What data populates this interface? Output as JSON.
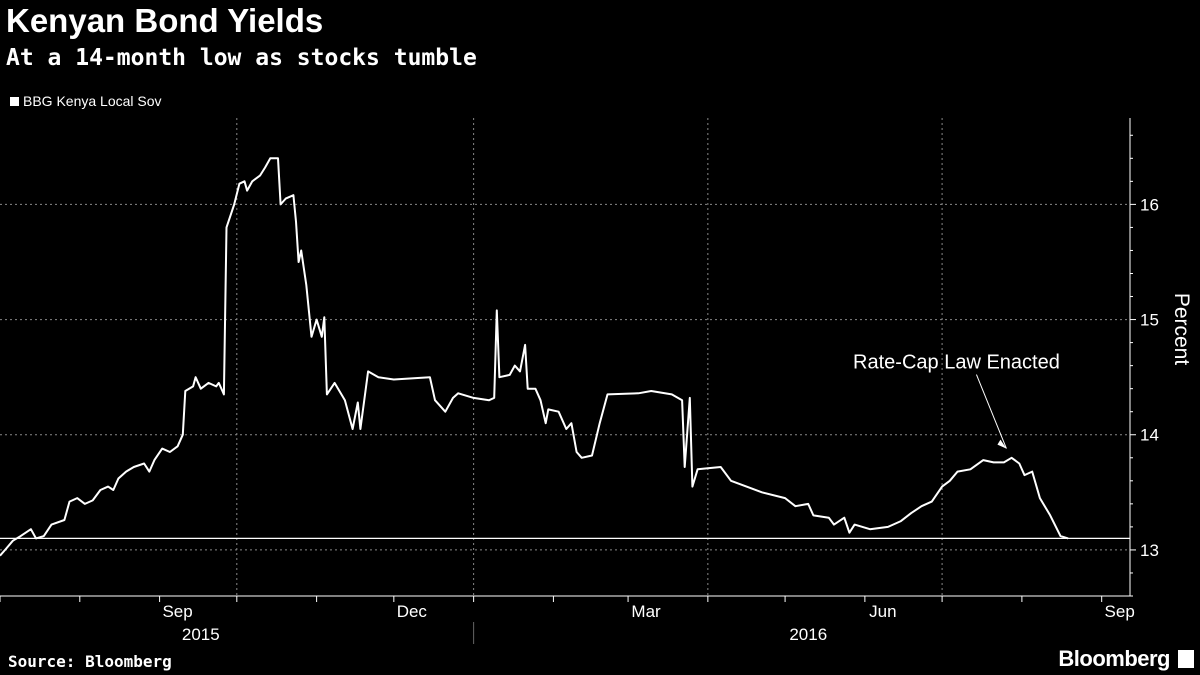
{
  "chart_data": {
    "type": "line",
    "title": "Kenyan Bond Yields",
    "subtitle": "At a 14-month low as stocks tumble",
    "ylabel": "Percent",
    "ylim": [
      12.6,
      16.75
    ],
    "yticks": [
      13,
      14,
      15,
      16
    ],
    "xlim": [
      "2015-07-01",
      "2016-09-12"
    ],
    "month_ticks": [
      {
        "date": "2015-07-01",
        "label": ""
      },
      {
        "date": "2015-08-01",
        "label": ""
      },
      {
        "date": "2015-09-01",
        "label": "Sep"
      },
      {
        "date": "2015-10-01",
        "label": ""
      },
      {
        "date": "2015-11-01",
        "label": ""
      },
      {
        "date": "2015-12-01",
        "label": "Dec"
      },
      {
        "date": "2016-01-01",
        "label": ""
      },
      {
        "date": "2016-02-01",
        "label": ""
      },
      {
        "date": "2016-03-01",
        "label": "Mar"
      },
      {
        "date": "2016-04-01",
        "label": ""
      },
      {
        "date": "2016-05-01",
        "label": ""
      },
      {
        "date": "2016-06-01",
        "label": "Jun"
      },
      {
        "date": "2016-07-01",
        "label": ""
      },
      {
        "date": "2016-08-01",
        "label": ""
      },
      {
        "date": "2016-09-01",
        "label": "Sep"
      }
    ],
    "vgrid_dates": [
      "2015-10-01",
      "2016-01-01",
      "2016-04-01",
      "2016-07-01"
    ],
    "year_labels": [
      {
        "label": "2015",
        "center": "2015-09-17"
      },
      {
        "label": "2016",
        "center": "2016-05-10"
      }
    ],
    "year_divider": "2016-01-01",
    "reference_line": 13.1,
    "grid": true,
    "legend_position": "top-left",
    "series": [
      {
        "name": "BBG Kenya Local Sov",
        "color": "#ffffff",
        "points": [
          [
            "2015-07-01",
            12.95
          ],
          [
            "2015-07-03",
            13.0
          ],
          [
            "2015-07-06",
            13.08
          ],
          [
            "2015-07-09",
            13.12
          ],
          [
            "2015-07-13",
            13.18
          ],
          [
            "2015-07-15",
            13.1
          ],
          [
            "2015-07-18",
            13.12
          ],
          [
            "2015-07-21",
            13.22
          ],
          [
            "2015-07-26",
            13.26
          ],
          [
            "2015-07-28",
            13.42
          ],
          [
            "2015-07-31",
            13.45
          ],
          [
            "2015-08-03",
            13.4
          ],
          [
            "2015-08-06",
            13.43
          ],
          [
            "2015-08-09",
            13.52
          ],
          [
            "2015-08-12",
            13.55
          ],
          [
            "2015-08-14",
            13.52
          ],
          [
            "2015-08-16",
            13.62
          ],
          [
            "2015-08-19",
            13.68
          ],
          [
            "2015-08-22",
            13.72
          ],
          [
            "2015-08-26",
            13.75
          ],
          [
            "2015-08-28",
            13.68
          ],
          [
            "2015-08-30",
            13.78
          ],
          [
            "2015-09-02",
            13.88
          ],
          [
            "2015-09-05",
            13.85
          ],
          [
            "2015-09-08",
            13.9
          ],
          [
            "2015-09-10",
            14.0
          ],
          [
            "2015-09-11",
            14.38
          ],
          [
            "2015-09-14",
            14.42
          ],
          [
            "2015-09-15",
            14.5
          ],
          [
            "2015-09-17",
            14.4
          ],
          [
            "2015-09-20",
            14.45
          ],
          [
            "2015-09-23",
            14.42
          ],
          [
            "2015-09-24",
            14.45
          ],
          [
            "2015-09-26",
            14.35
          ],
          [
            "2015-09-27",
            15.8
          ],
          [
            "2015-09-30",
            16.0
          ],
          [
            "2015-10-02",
            16.18
          ],
          [
            "2015-10-04",
            16.2
          ],
          [
            "2015-10-05",
            16.12
          ],
          [
            "2015-10-07",
            16.2
          ],
          [
            "2015-10-10",
            16.25
          ],
          [
            "2015-10-12",
            16.32
          ],
          [
            "2015-10-14",
            16.4
          ],
          [
            "2015-10-17",
            16.4
          ],
          [
            "2015-10-18",
            16.0
          ],
          [
            "2015-10-20",
            16.05
          ],
          [
            "2015-10-23",
            16.08
          ],
          [
            "2015-10-24",
            15.85
          ],
          [
            "2015-10-25",
            15.5
          ],
          [
            "2015-10-26",
            15.6
          ],
          [
            "2015-10-28",
            15.3
          ],
          [
            "2015-10-30",
            14.85
          ],
          [
            "2015-11-01",
            15.0
          ],
          [
            "2015-11-03",
            14.85
          ],
          [
            "2015-11-04",
            15.02
          ],
          [
            "2015-11-05",
            14.35
          ],
          [
            "2015-11-08",
            14.45
          ],
          [
            "2015-11-12",
            14.3
          ],
          [
            "2015-11-15",
            14.05
          ],
          [
            "2015-11-17",
            14.28
          ],
          [
            "2015-11-18",
            14.05
          ],
          [
            "2015-11-21",
            14.55
          ],
          [
            "2015-11-25",
            14.5
          ],
          [
            "2015-12-01",
            14.48
          ],
          [
            "2015-12-15",
            14.5
          ],
          [
            "2015-12-17",
            14.3
          ],
          [
            "2015-12-21",
            14.2
          ],
          [
            "2015-12-24",
            14.32
          ],
          [
            "2015-12-26",
            14.36
          ],
          [
            "2016-01-01",
            14.32
          ],
          [
            "2016-01-07",
            14.3
          ],
          [
            "2016-01-09",
            14.32
          ],
          [
            "2016-01-10",
            15.08
          ],
          [
            "2016-01-11",
            14.5
          ],
          [
            "2016-01-15",
            14.52
          ],
          [
            "2016-01-17",
            14.6
          ],
          [
            "2016-01-19",
            14.55
          ],
          [
            "2016-01-21",
            14.78
          ],
          [
            "2016-01-22",
            14.4
          ],
          [
            "2016-01-25",
            14.4
          ],
          [
            "2016-01-27",
            14.3
          ],
          [
            "2016-01-29",
            14.1
          ],
          [
            "2016-01-30",
            14.22
          ],
          [
            "2016-02-03",
            14.2
          ],
          [
            "2016-02-06",
            14.05
          ],
          [
            "2016-02-08",
            14.1
          ],
          [
            "2016-02-10",
            13.85
          ],
          [
            "2016-02-12",
            13.8
          ],
          [
            "2016-02-16",
            13.82
          ],
          [
            "2016-02-19",
            14.1
          ],
          [
            "2016-02-22",
            14.35
          ],
          [
            "2016-03-05",
            14.36
          ],
          [
            "2016-03-10",
            14.38
          ],
          [
            "2016-03-18",
            14.35
          ],
          [
            "2016-03-22",
            14.3
          ],
          [
            "2016-03-23",
            13.72
          ],
          [
            "2016-03-25",
            14.32
          ],
          [
            "2016-03-26",
            13.55
          ],
          [
            "2016-03-28",
            13.7
          ],
          [
            "2016-04-06",
            13.72
          ],
          [
            "2016-04-10",
            13.6
          ],
          [
            "2016-04-16",
            13.55
          ],
          [
            "2016-04-22",
            13.5
          ],
          [
            "2016-05-01",
            13.45
          ],
          [
            "2016-05-05",
            13.38
          ],
          [
            "2016-05-10",
            13.4
          ],
          [
            "2016-05-12",
            13.3
          ],
          [
            "2016-05-18",
            13.28
          ],
          [
            "2016-05-20",
            13.22
          ],
          [
            "2016-05-24",
            13.28
          ],
          [
            "2016-05-26",
            13.15
          ],
          [
            "2016-05-28",
            13.22
          ],
          [
            "2016-06-03",
            13.18
          ],
          [
            "2016-06-10",
            13.2
          ],
          [
            "2016-06-15",
            13.25
          ],
          [
            "2016-06-19",
            13.32
          ],
          [
            "2016-06-23",
            13.38
          ],
          [
            "2016-06-27",
            13.42
          ],
          [
            "2016-07-01",
            13.55
          ],
          [
            "2016-07-04",
            13.6
          ],
          [
            "2016-07-07",
            13.68
          ],
          [
            "2016-07-12",
            13.7
          ],
          [
            "2016-07-17",
            13.78
          ],
          [
            "2016-07-21",
            13.76
          ],
          [
            "2016-07-25",
            13.76
          ],
          [
            "2016-07-28",
            13.8
          ],
          [
            "2016-07-31",
            13.75
          ],
          [
            "2016-08-02",
            13.65
          ],
          [
            "2016-08-05",
            13.68
          ],
          [
            "2016-08-08",
            13.45
          ],
          [
            "2016-08-12",
            13.3
          ],
          [
            "2016-08-16",
            13.12
          ],
          [
            "2016-08-19",
            13.1
          ]
        ]
      }
    ],
    "annotations": [
      {
        "text": "Rate-Cap Law Enacted",
        "target_date": "2016-07-26",
        "target_value": 13.88
      }
    ]
  },
  "legend_label": "BBG Kenya Local Sov",
  "source_text": "Source: Bloomberg",
  "brand_text": "Bloomberg",
  "colors": {
    "background": "#000000",
    "line": "#ffffff",
    "grid": "#888888"
  }
}
